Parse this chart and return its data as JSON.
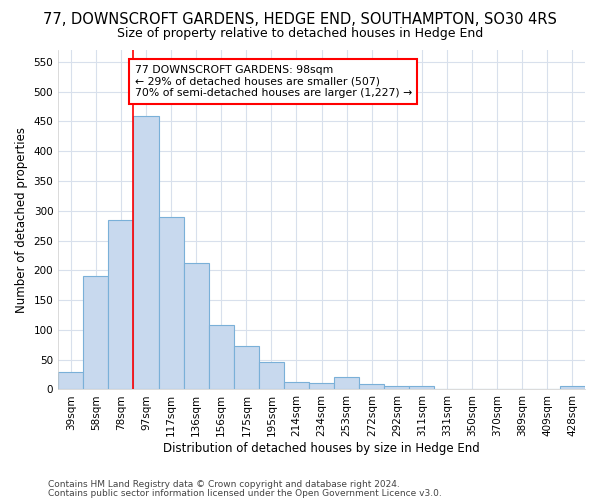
{
  "title": "77, DOWNSCROFT GARDENS, HEDGE END, SOUTHAMPTON, SO30 4RS",
  "subtitle": "Size of property relative to detached houses in Hedge End",
  "xlabel": "Distribution of detached houses by size in Hedge End",
  "ylabel": "Number of detached properties",
  "categories": [
    "39sqm",
    "58sqm",
    "78sqm",
    "97sqm",
    "117sqm",
    "136sqm",
    "156sqm",
    "175sqm",
    "195sqm",
    "214sqm",
    "234sqm",
    "253sqm",
    "272sqm",
    "292sqm",
    "311sqm",
    "331sqm",
    "350sqm",
    "370sqm",
    "389sqm",
    "409sqm",
    "428sqm"
  ],
  "values": [
    30,
    190,
    285,
    460,
    290,
    213,
    108,
    73,
    46,
    12,
    11,
    21,
    10,
    5,
    5,
    0,
    0,
    0,
    0,
    0,
    5
  ],
  "bar_color": "#c8d9ee",
  "bar_edge_color": "#7ab0d8",
  "ylim": [
    0,
    570
  ],
  "yticks": [
    0,
    50,
    100,
    150,
    200,
    250,
    300,
    350,
    400,
    450,
    500,
    550
  ],
  "redline_bar_index": 3,
  "annotation_text": "77 DOWNSCROFT GARDENS: 98sqm\n← 29% of detached houses are smaller (507)\n70% of semi-detached houses are larger (1,227) →",
  "footer_line1": "Contains HM Land Registry data © Crown copyright and database right 2024.",
  "footer_line2": "Contains public sector information licensed under the Open Government Licence v3.0.",
  "bg_color": "#ffffff",
  "plot_bg_color": "#ffffff",
  "grid_color": "#d8e0ec",
  "title_fontsize": 10.5,
  "subtitle_fontsize": 9,
  "axis_label_fontsize": 8.5,
  "tick_fontsize": 7.5,
  "footer_fontsize": 6.5
}
